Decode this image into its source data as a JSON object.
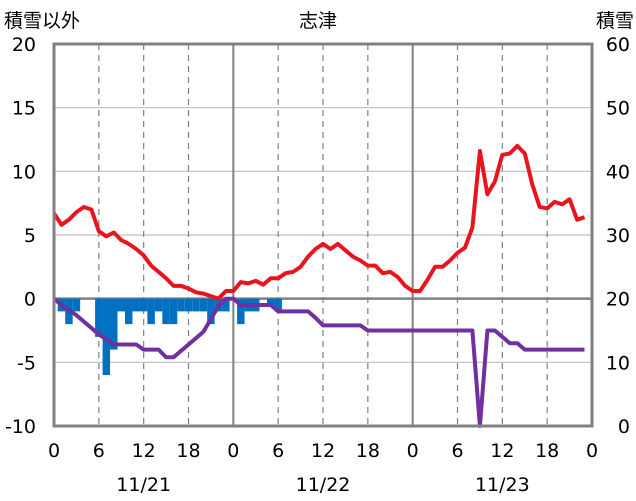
{
  "chart_data": {
    "type": "line",
    "title": "志津",
    "ylabel_left": "積雪以外",
    "ylabel_right": "積雪",
    "ylim_left": [
      -10,
      20
    ],
    "ylim_right": [
      0,
      60
    ],
    "yticks_left": [
      "20",
      "15",
      "10",
      "5",
      "0",
      "-5",
      "-10"
    ],
    "yticks_right": [
      "60",
      "50",
      "40",
      "30",
      "20",
      "10",
      "0"
    ],
    "xlim_hours": [
      0,
      72
    ],
    "xticks": [
      "0",
      "6",
      "12",
      "18",
      "0",
      "6",
      "12",
      "18",
      "0",
      "6",
      "12",
      "18",
      "0"
    ],
    "date_labels": [
      {
        "label": "11/21",
        "hour": 12
      },
      {
        "label": "11/22",
        "hour": 36
      },
      {
        "label": "11/23",
        "hour": 60
      }
    ],
    "grid": true,
    "series": [
      {
        "color": "#e8141e",
        "axis": "left",
        "points": [
          [
            0,
            6.7
          ],
          [
            1,
            5.8
          ],
          [
            2,
            6.2
          ],
          [
            3,
            6.8
          ],
          [
            4,
            7.2
          ],
          [
            5,
            7.0
          ],
          [
            6,
            5.3
          ],
          [
            7,
            4.9
          ],
          [
            8,
            5.2
          ],
          [
            9,
            4.6
          ],
          [
            10,
            4.3
          ],
          [
            11,
            3.9
          ],
          [
            12,
            3.4
          ],
          [
            13,
            2.6
          ],
          [
            14,
            2.1
          ],
          [
            15,
            1.6
          ],
          [
            16,
            1.0
          ],
          [
            17,
            1.0
          ],
          [
            18,
            0.8
          ],
          [
            19,
            0.5
          ],
          [
            20,
            0.4
          ],
          [
            21,
            0.2
          ],
          [
            22,
            0.0
          ],
          [
            23,
            0.6
          ],
          [
            24,
            0.6
          ],
          [
            25,
            1.3
          ],
          [
            26,
            1.2
          ],
          [
            27,
            1.4
          ],
          [
            28,
            1.1
          ],
          [
            29,
            1.6
          ],
          [
            30,
            1.6
          ],
          [
            31,
            2.0
          ],
          [
            32,
            2.1
          ],
          [
            33,
            2.5
          ],
          [
            34,
            3.3
          ],
          [
            35,
            3.9
          ],
          [
            36,
            4.3
          ],
          [
            37,
            3.9
          ],
          [
            38,
            4.3
          ],
          [
            39,
            3.8
          ],
          [
            40,
            3.3
          ],
          [
            41,
            3.0
          ],
          [
            42,
            2.6
          ],
          [
            43,
            2.6
          ],
          [
            44,
            2.0
          ],
          [
            45,
            2.1
          ],
          [
            46,
            1.7
          ],
          [
            47,
            1.0
          ],
          [
            48,
            0.6
          ],
          [
            49,
            0.6
          ],
          [
            50,
            1.5
          ],
          [
            51,
            2.5
          ],
          [
            52,
            2.5
          ],
          [
            53,
            3.0
          ],
          [
            54,
            3.6
          ],
          [
            55,
            4.0
          ],
          [
            56,
            5.6
          ],
          [
            57,
            11.6
          ],
          [
            58,
            8.2
          ],
          [
            59,
            9.2
          ],
          [
            60,
            11.3
          ],
          [
            61,
            11.4
          ],
          [
            62,
            12.0
          ],
          [
            63,
            11.4
          ],
          [
            64,
            9.0
          ],
          [
            65,
            7.2
          ],
          [
            66,
            7.1
          ],
          [
            67,
            7.6
          ],
          [
            68,
            7.4
          ],
          [
            69,
            7.8
          ],
          [
            70,
            6.2
          ],
          [
            71,
            6.4
          ]
        ]
      },
      {
        "color": "#7030a0",
        "axis": "left",
        "points": [
          [
            0,
            0
          ],
          [
            1,
            -0.5
          ],
          [
            2,
            -0.9
          ],
          [
            3,
            -1.3
          ],
          [
            4,
            -1.8
          ],
          [
            5,
            -2.3
          ],
          [
            6,
            -2.8
          ],
          [
            7,
            -3.2
          ],
          [
            8,
            -3.6
          ],
          [
            9,
            -3.6
          ],
          [
            10,
            -3.6
          ],
          [
            11,
            -3.6
          ],
          [
            12,
            -4.0
          ],
          [
            13,
            -4.0
          ],
          [
            14,
            -4.0
          ],
          [
            15,
            -4.6
          ],
          [
            16,
            -4.6
          ],
          [
            17,
            -4.1
          ],
          [
            18,
            -3.6
          ],
          [
            19,
            -3.1
          ],
          [
            20,
            -2.6
          ],
          [
            21,
            -1.6
          ],
          [
            22,
            -0.6
          ],
          [
            23,
            0.0
          ],
          [
            24,
            0.0
          ],
          [
            25,
            -0.5
          ],
          [
            26,
            -0.5
          ],
          [
            27,
            -0.5
          ],
          [
            28,
            -0.5
          ],
          [
            29,
            -0.5
          ],
          [
            30,
            -1.0
          ],
          [
            31,
            -1.0
          ],
          [
            32,
            -1.0
          ],
          [
            33,
            -1.0
          ],
          [
            34,
            -1.0
          ],
          [
            35,
            -1.5
          ],
          [
            36,
            -2.1
          ],
          [
            37,
            -2.1
          ],
          [
            38,
            -2.1
          ],
          [
            39,
            -2.1
          ],
          [
            40,
            -2.1
          ],
          [
            41,
            -2.1
          ],
          [
            42,
            -2.5
          ],
          [
            43,
            -2.5
          ],
          [
            44,
            -2.5
          ],
          [
            45,
            -2.5
          ],
          [
            46,
            -2.5
          ],
          [
            47,
            -2.5
          ],
          [
            48,
            -2.5
          ],
          [
            49,
            -2.5
          ],
          [
            50,
            -2.5
          ],
          [
            51,
            -2.5
          ],
          [
            52,
            -2.5
          ],
          [
            53,
            -2.5
          ],
          [
            54,
            -2.5
          ],
          [
            55,
            -2.5
          ],
          [
            56,
            -2.5
          ],
          [
            57,
            -10.0
          ],
          [
            58,
            -2.5
          ],
          [
            59,
            -2.5
          ],
          [
            60,
            -3.0
          ],
          [
            61,
            -3.5
          ],
          [
            62,
            -3.5
          ],
          [
            63,
            -4.0
          ],
          [
            64,
            -4.0
          ],
          [
            65,
            -4.0
          ],
          [
            66,
            -4.0
          ],
          [
            67,
            -4.0
          ],
          [
            68,
            -4.0
          ],
          [
            69,
            -4.0
          ],
          [
            70,
            -4.0
          ],
          [
            71,
            -4.0
          ]
        ]
      },
      {
        "color": "#0070c0",
        "axis": "left",
        "type": "bar",
        "points": [
          [
            1,
            -1
          ],
          [
            2,
            -2
          ],
          [
            3,
            -1
          ],
          [
            6,
            -3
          ],
          [
            7,
            -6
          ],
          [
            8,
            -4
          ],
          [
            9,
            -1
          ],
          [
            10,
            -2
          ],
          [
            11,
            -1
          ],
          [
            12,
            -1
          ],
          [
            13,
            -2
          ],
          [
            14,
            -1
          ],
          [
            15,
            -2
          ],
          [
            16,
            -2
          ],
          [
            17,
            -1
          ],
          [
            18,
            -1
          ],
          [
            19,
            -1
          ],
          [
            20,
            -1
          ],
          [
            21,
            -2
          ],
          [
            22,
            -1
          ],
          [
            23,
            -1
          ],
          [
            25,
            -2
          ],
          [
            26,
            -1
          ],
          [
            27,
            -1
          ],
          [
            29,
            -0.5
          ],
          [
            30,
            -1
          ]
        ]
      }
    ]
  }
}
